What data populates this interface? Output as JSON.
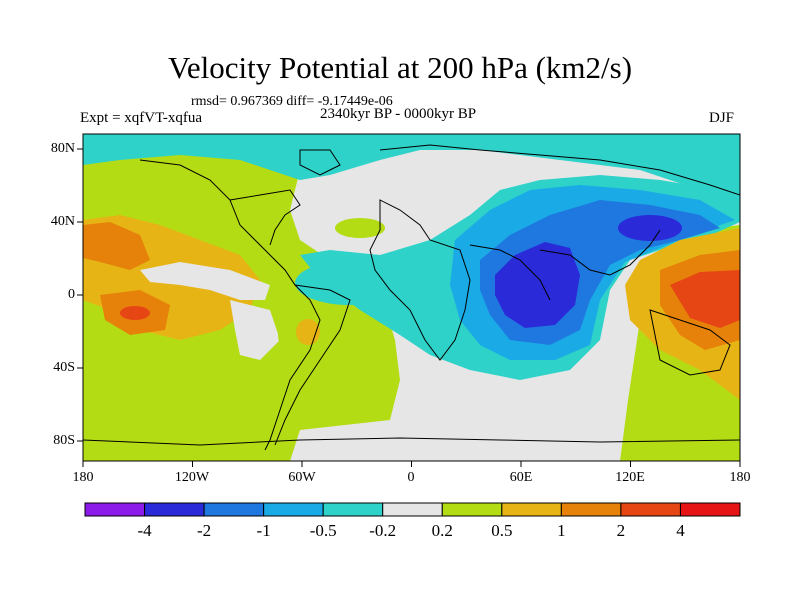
{
  "title": "Velocity Potential at 200 hPa (km2/s)",
  "stats": "rmsd= 0.967369  diff= -9.17449e-06",
  "experiment": "Expt = xqfVT-xqfua",
  "period": "2340kyr BP - 0000kyr BP",
  "season": "DJF",
  "lon_labels": [
    "180",
    "120W",
    "60W",
    "0",
    "60E",
    "120E",
    "180"
  ],
  "lat_labels": [
    "80N",
    "40N",
    "0",
    "40S",
    "80S"
  ],
  "colorbar": {
    "colors": [
      "#8c1ae8",
      "#2a2ad8",
      "#1e78e0",
      "#1aaae6",
      "#2ed2c8",
      "#e6e6e6",
      "#b4dc14",
      "#e6b414",
      "#e6820a",
      "#e64614",
      "#e61414"
    ],
    "labels": [
      "-4",
      "-2",
      "-1",
      "-0.5",
      "-0.2",
      "0.2",
      "0.5",
      "1",
      "2",
      "4"
    ]
  }
}
